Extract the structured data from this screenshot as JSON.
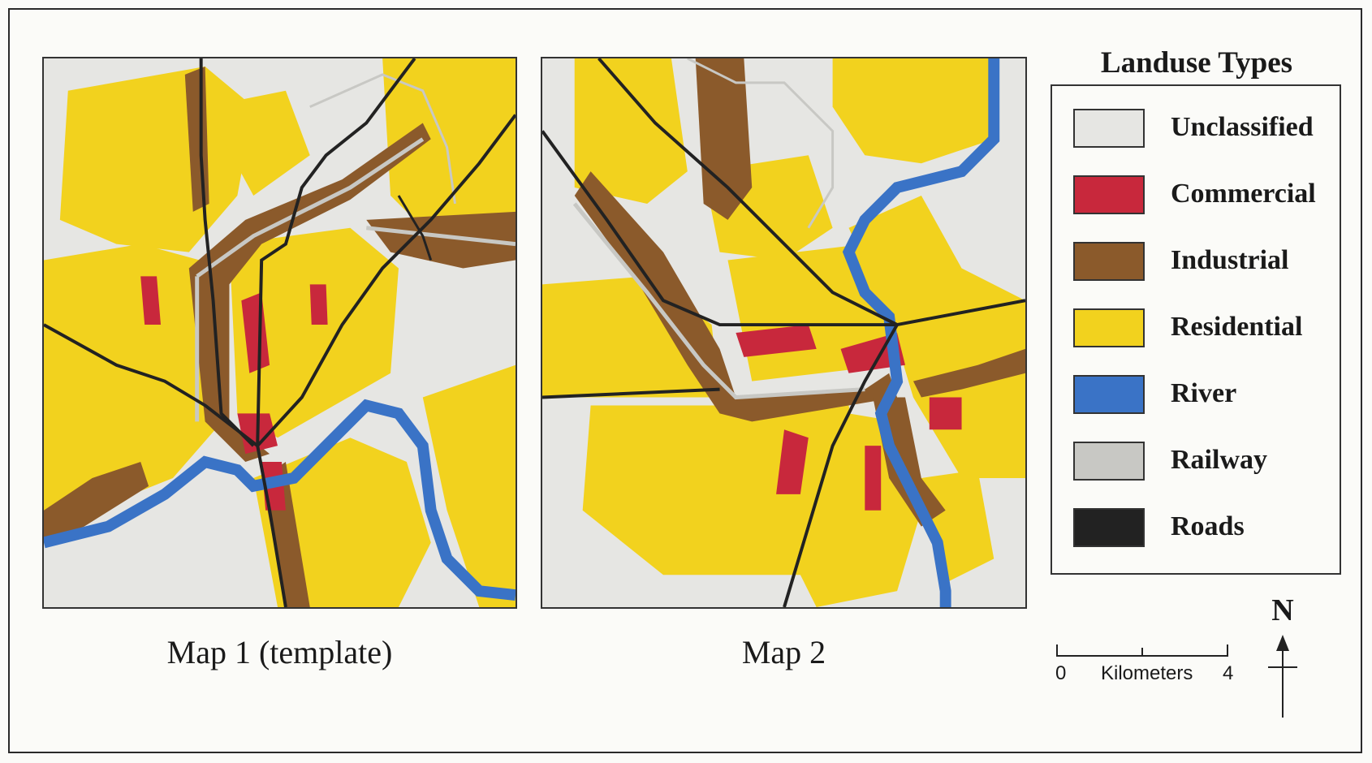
{
  "legend": {
    "title": "Landuse Types",
    "items": [
      {
        "label": "Unclassified",
        "color": "#e6e6e3"
      },
      {
        "label": "Commercial",
        "color": "#c8283c"
      },
      {
        "label": "Industrial",
        "color": "#8b5a2b"
      },
      {
        "label": "Residential",
        "color": "#f2d21e"
      },
      {
        "label": "River",
        "color": "#3a73c6"
      },
      {
        "label": "Railway",
        "color": "#c8c8c4"
      },
      {
        "label": "Roads",
        "color": "#222222"
      }
    ]
  },
  "maps": [
    {
      "caption": "Map 1 (template)"
    },
    {
      "caption": "Map 2"
    }
  ],
  "scale": {
    "start": "0",
    "unit": "Kilometers",
    "end": "4"
  },
  "north": {
    "label": "N"
  }
}
